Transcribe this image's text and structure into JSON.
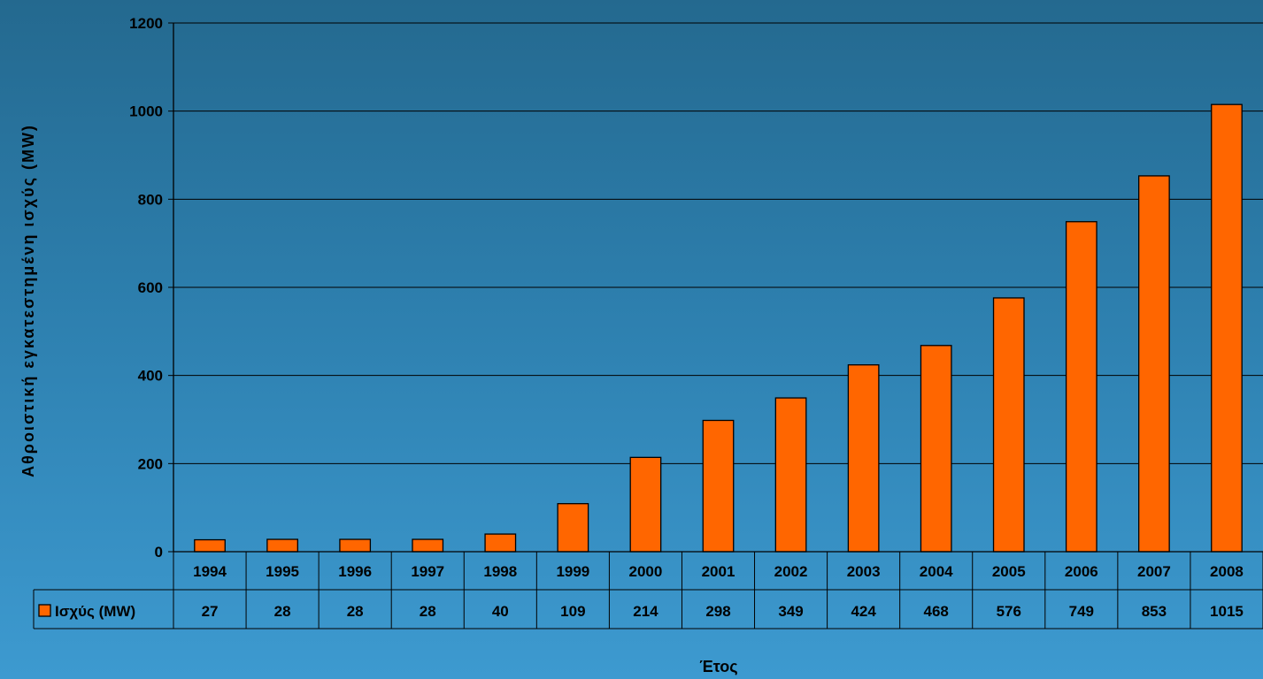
{
  "chart_data": {
    "type": "bar",
    "categories": [
      "1994",
      "1995",
      "1996",
      "1997",
      "1998",
      "1999",
      "2000",
      "2001",
      "2002",
      "2003",
      "2004",
      "2005",
      "2006",
      "2007",
      "2008"
    ],
    "series": [
      {
        "name": "Ισχύς (MW)",
        "values": [
          27,
          28,
          28,
          28,
          40,
          109,
          214,
          298,
          349,
          424,
          468,
          576,
          749,
          853,
          1015
        ],
        "color": "#ff6600"
      }
    ],
    "title": "",
    "xlabel": "Έτος",
    "ylabel": "Αθροιστική εγκατεστημένη ισχύς (MW)",
    "ylim": [
      0,
      1200
    ],
    "yticks": [
      0,
      200,
      400,
      600,
      800,
      1000,
      1200
    ],
    "grid": true,
    "data_table": true,
    "legend_placement": "data-table-left"
  }
}
